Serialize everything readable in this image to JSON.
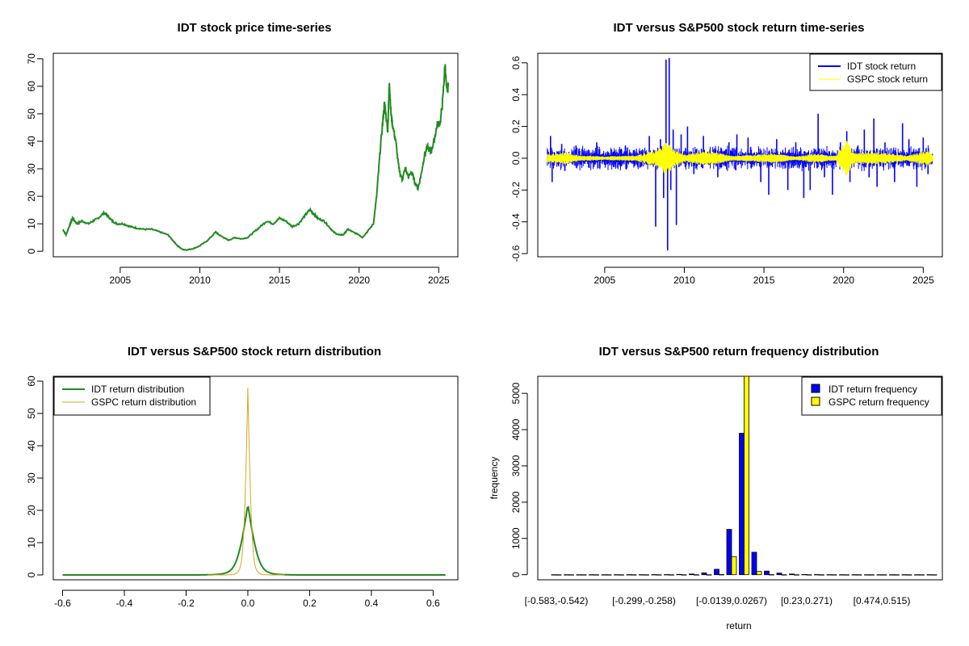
{
  "colors": {
    "price": "#228B22",
    "idt_return": "#0000FF",
    "gspc_return": "#FFFF00",
    "idt_density": "#228B22",
    "gspc_density": "#DAA520",
    "idt_bar": "#0000FF",
    "gspc_bar": "#FFFF00",
    "axis": "#000000"
  },
  "chart_data": [
    {
      "id": "price",
      "type": "line",
      "title": "IDT stock price time-series",
      "xlabel": "",
      "ylabel": "",
      "xlim": [
        2000.8,
        2026.2
      ],
      "ylim": [
        -2,
        72
      ],
      "xticks": [
        2005,
        2010,
        2015,
        2020,
        2025
      ],
      "xtick_labels": [
        "2005",
        "2010",
        "2015",
        "2020",
        "2025"
      ],
      "yticks": [
        0,
        10,
        20,
        30,
        40,
        50,
        60,
        70
      ],
      "ytick_labels": [
        "0",
        "10",
        "20",
        "30",
        "40",
        "50",
        "60",
        "70"
      ],
      "series": [
        {
          "name": "IDT price",
          "x": [
            2001.4,
            2001.6,
            2001.8,
            2002.0,
            2002.3,
            2002.6,
            2003.0,
            2003.3,
            2003.6,
            2004.0,
            2004.2,
            2004.5,
            2004.8,
            2005.2,
            2005.6,
            2006.0,
            2006.5,
            2007.0,
            2007.5,
            2008.0,
            2008.3,
            2008.6,
            2008.9,
            2009.2,
            2009.6,
            2010.0,
            2010.5,
            2011.0,
            2011.2,
            2011.5,
            2011.8,
            2012.2,
            2012.6,
            2013.0,
            2013.4,
            2013.8,
            2014.2,
            2014.6,
            2015.0,
            2015.4,
            2015.8,
            2016.2,
            2016.6,
            2016.9,
            2017.1,
            2017.4,
            2017.8,
            2018.1,
            2018.4,
            2018.7,
            2019.0,
            2019.3,
            2019.6,
            2020.0,
            2020.2,
            2020.5,
            2020.9,
            2021.1,
            2021.3,
            2021.5,
            2021.6,
            2021.8,
            2021.9,
            2022.0,
            2022.1,
            2022.3,
            2022.5,
            2022.7,
            2022.9,
            2023.1,
            2023.3,
            2023.5,
            2023.7,
            2023.9,
            2024.1,
            2024.3,
            2024.5,
            2024.7,
            2024.9,
            2025.1,
            2025.25,
            2025.4,
            2025.5,
            2025.6
          ],
          "y": [
            8,
            6,
            9,
            12,
            10,
            11,
            10,
            11,
            12,
            14,
            13,
            11,
            10,
            10,
            9,
            8.5,
            8,
            8,
            7,
            6,
            4,
            2,
            0.7,
            0.5,
            1,
            2,
            4,
            7,
            6,
            5,
            4,
            5,
            4.5,
            5,
            7,
            9,
            11,
            10,
            12,
            11,
            9,
            10,
            13,
            15,
            14,
            12,
            11,
            9,
            7,
            6,
            6,
            8,
            7,
            6,
            5,
            7,
            10,
            20,
            35,
            48,
            54,
            44,
            62,
            50,
            46,
            40,
            30,
            26,
            30,
            27,
            29,
            25,
            23,
            28,
            35,
            38,
            36,
            40,
            46,
            47,
            55,
            68,
            58,
            60
          ]
        }
      ]
    },
    {
      "id": "returns",
      "type": "line",
      "title": "IDT versus S&P500 stock return time-series",
      "xlabel": "",
      "ylabel": "",
      "xlim": [
        2000.8,
        2026.2
      ],
      "ylim": [
        -0.62,
        0.66
      ],
      "xticks": [
        2005,
        2010,
        2015,
        2020,
        2025
      ],
      "xtick_labels": [
        "2005",
        "2010",
        "2015",
        "2020",
        "2025"
      ],
      "yticks": [
        -0.6,
        -0.4,
        -0.2,
        0.0,
        0.2,
        0.4,
        0.6
      ],
      "ytick_labels": [
        "-0.6",
        "-0.4",
        "-0.2",
        "0.0",
        "0.2",
        "0.4",
        "0.6"
      ],
      "legend": {
        "position": "top-right",
        "entries": [
          "IDT stock return",
          "GSPC stock return"
        ]
      },
      "series": [
        {
          "name": "IDT stock return",
          "spikes": [
            {
              "x": 2001.6,
              "y": 0.14
            },
            {
              "x": 2001.7,
              "y": -0.15
            },
            {
              "x": 2002.3,
              "y": 0.09
            },
            {
              "x": 2002.5,
              "y": -0.08
            },
            {
              "x": 2003.2,
              "y": 0.08
            },
            {
              "x": 2004.5,
              "y": 0.1
            },
            {
              "x": 2004.7,
              "y": -0.06
            },
            {
              "x": 2006.3,
              "y": 0.08
            },
            {
              "x": 2007.3,
              "y": -0.05
            },
            {
              "x": 2007.8,
              "y": 0.14
            },
            {
              "x": 2008.2,
              "y": -0.43
            },
            {
              "x": 2008.5,
              "y": 0.12
            },
            {
              "x": 2008.7,
              "y": -0.25
            },
            {
              "x": 2008.85,
              "y": 0.62
            },
            {
              "x": 2008.95,
              "y": -0.58
            },
            {
              "x": 2009.05,
              "y": 0.63
            },
            {
              "x": 2009.15,
              "y": -0.2
            },
            {
              "x": 2009.3,
              "y": 0.18
            },
            {
              "x": 2009.5,
              "y": -0.42
            },
            {
              "x": 2009.8,
              "y": 0.15
            },
            {
              "x": 2010.2,
              "y": 0.2
            },
            {
              "x": 2010.6,
              "y": -0.1
            },
            {
              "x": 2011.2,
              "y": 0.14
            },
            {
              "x": 2012.1,
              "y": -0.12
            },
            {
              "x": 2012.8,
              "y": 0.1
            },
            {
              "x": 2013.3,
              "y": 0.15
            },
            {
              "x": 2014.0,
              "y": 0.13
            },
            {
              "x": 2014.8,
              "y": -0.15
            },
            {
              "x": 2015.3,
              "y": -0.23
            },
            {
              "x": 2015.8,
              "y": 0.12
            },
            {
              "x": 2016.5,
              "y": -0.2
            },
            {
              "x": 2017.0,
              "y": 0.1
            },
            {
              "x": 2017.5,
              "y": -0.25
            },
            {
              "x": 2017.9,
              "y": -0.2
            },
            {
              "x": 2018.4,
              "y": 0.28
            },
            {
              "x": 2018.8,
              "y": -0.12
            },
            {
              "x": 2019.3,
              "y": -0.23
            },
            {
              "x": 2019.8,
              "y": 0.1
            },
            {
              "x": 2020.2,
              "y": 0.17
            },
            {
              "x": 2020.4,
              "y": -0.15
            },
            {
              "x": 2020.9,
              "y": 0.08
            },
            {
              "x": 2021.3,
              "y": 0.18
            },
            {
              "x": 2021.6,
              "y": -0.12
            },
            {
              "x": 2021.9,
              "y": 0.25
            },
            {
              "x": 2022.1,
              "y": -0.18
            },
            {
              "x": 2022.6,
              "y": 0.1
            },
            {
              "x": 2023.2,
              "y": -0.15
            },
            {
              "x": 2023.7,
              "y": 0.22
            },
            {
              "x": 2024.1,
              "y": 0.12
            },
            {
              "x": 2024.6,
              "y": -0.18
            },
            {
              "x": 2025.0,
              "y": 0.13
            },
            {
              "x": 2025.3,
              "y": -0.1
            }
          ],
          "noise_band": 0.04
        },
        {
          "name": "GSPC stock return",
          "band": [
            {
              "x": 2001.4,
              "h": 0.02
            },
            {
              "x": 2002.5,
              "h": 0.03
            },
            {
              "x": 2003.5,
              "h": 0.015
            },
            {
              "x": 2005.0,
              "h": 0.01
            },
            {
              "x": 2007.0,
              "h": 0.015
            },
            {
              "x": 2008.5,
              "h": 0.05
            },
            {
              "x": 2008.9,
              "h": 0.1
            },
            {
              "x": 2009.3,
              "h": 0.05
            },
            {
              "x": 2010.0,
              "h": 0.02
            },
            {
              "x": 2011.6,
              "h": 0.04
            },
            {
              "x": 2013.0,
              "h": 0.012
            },
            {
              "x": 2015.7,
              "h": 0.025
            },
            {
              "x": 2017.0,
              "h": 0.01
            },
            {
              "x": 2018.2,
              "h": 0.025
            },
            {
              "x": 2019.5,
              "h": 0.012
            },
            {
              "x": 2020.2,
              "h": 0.1
            },
            {
              "x": 2020.6,
              "h": 0.03
            },
            {
              "x": 2022.3,
              "h": 0.03
            },
            {
              "x": 2024.0,
              "h": 0.015
            },
            {
              "x": 2025.3,
              "h": 0.04
            },
            {
              "x": 2025.6,
              "h": 0.015
            }
          ]
        }
      ]
    },
    {
      "id": "density",
      "type": "line",
      "title": "IDT versus S&P500 stock return distribution",
      "xlabel": "",
      "ylabel": "",
      "xlim": [
        -0.63,
        0.68
      ],
      "ylim": [
        -1.5,
        61.5
      ],
      "xticks": [
        -0.6,
        -0.4,
        -0.2,
        0.0,
        0.2,
        0.4,
        0.6
      ],
      "xtick_labels": [
        "-0.6",
        "-0.4",
        "-0.2",
        "0.0",
        "0.2",
        "0.4",
        "0.6"
      ],
      "yticks": [
        0,
        10,
        20,
        30,
        40,
        50,
        60
      ],
      "ytick_labels": [
        "0",
        "10",
        "20",
        "30",
        "40",
        "50",
        "60"
      ],
      "legend": {
        "position": "top-left",
        "entries": [
          "IDT return distribution",
          "GSPC return distribution"
        ]
      },
      "series": [
        {
          "name": "IDT return distribution",
          "range": [
            -0.6,
            0.64
          ],
          "peak": 22,
          "scale": 0.022,
          "mode": "laplace"
        },
        {
          "name": "GSPC return distribution",
          "range": [
            -0.13,
            0.12
          ],
          "peak": 58,
          "scale": 0.0085,
          "mode": "laplace"
        }
      ]
    },
    {
      "id": "histogram",
      "type": "bar",
      "title": "IDT versus S&P500 return frequency distribution",
      "xlabel": "return",
      "ylabel": "frequency",
      "ylim": [
        -140,
        5470
      ],
      "yticks": [
        0,
        1000,
        2000,
        3000,
        4000,
        5000
      ],
      "ytick_labels": [
        "0",
        "1000",
        "2000",
        "3000",
        "4000",
        "5000"
      ],
      "category_labels_shown": [
        {
          "index": 0,
          "label": "[-0.583,-0.542)"
        },
        {
          "index": 7,
          "label": "[-0.299,-0.258)"
        },
        {
          "index": 14,
          "label": "[-0.0139,0.0267)"
        },
        {
          "index": 20,
          "label": "[0.23,0.271)"
        },
        {
          "index": 26,
          "label": "[0.474,0.515)"
        }
      ],
      "legend": {
        "position": "top-right",
        "entries": [
          "IDT return frequency",
          "GSPC return frequency"
        ]
      },
      "series": [
        {
          "name": "IDT return frequency",
          "values": [
            1,
            1,
            1,
            2,
            1,
            2,
            3,
            2,
            4,
            5,
            10,
            20,
            50,
            150,
            1250,
            3900,
            620,
            100,
            45,
            20,
            8,
            5,
            3,
            2,
            2,
            1,
            1,
            1,
            2,
            1,
            2
          ]
        },
        {
          "name": "GSPC return frequency",
          "values": [
            0,
            0,
            0,
            0,
            0,
            0,
            0,
            0,
            0,
            0,
            0,
            0,
            0,
            5,
            500,
            5470,
            90,
            3,
            0,
            0,
            0,
            0,
            0,
            0,
            0,
            0,
            0,
            0,
            0,
            0,
            0
          ]
        }
      ]
    }
  ]
}
